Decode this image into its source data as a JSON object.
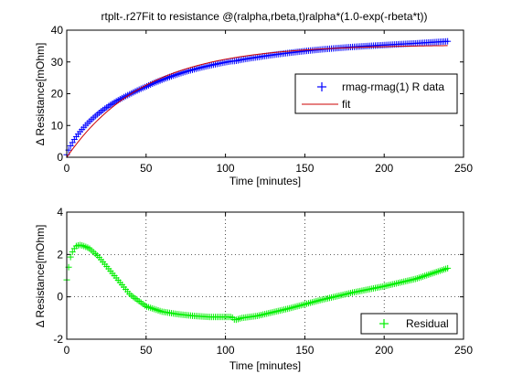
{
  "chart_data": [
    {
      "type": "scatter",
      "title": "rtplt-.r27Fit to resistance @(ralpha,rbeta,t)ralpha*(1.0-exp(-rbeta*t))",
      "xlabel": "Time [minutes]",
      "ylabel": "Δ Resistance[mOhm]",
      "xlim": [
        0,
        250
      ],
      "ylim": [
        0,
        40
      ],
      "xticks": [
        0,
        50,
        100,
        150,
        200,
        250
      ],
      "yticks": [
        0,
        10,
        20,
        30,
        40
      ],
      "grid": false,
      "legend_position": "right",
      "series": [
        {
          "name": "rmag-rmag(1) R data",
          "color": "#0000ff",
          "marker": "plus",
          "model": "fit_plus_residual",
          "x_range": [
            0,
            240
          ]
        },
        {
          "name": "fit",
          "color": "#cc0000",
          "style": "line",
          "model": "ralpha*(1.0-exp(-rbeta*t))",
          "params": {
            "ralpha": 35.4,
            "rbeta": 0.0205
          },
          "x_range": [
            0,
            240
          ]
        }
      ]
    },
    {
      "type": "scatter",
      "title": "",
      "xlabel": "Time [minutes]",
      "ylabel": "Δ Resistance[mOhm]",
      "xlim": [
        0,
        250
      ],
      "ylim": [
        -2,
        4
      ],
      "xticks": [
        0,
        50,
        100,
        150,
        200,
        250
      ],
      "yticks": [
        -2,
        0,
        2,
        4
      ],
      "grid": true,
      "legend_position": "bottom-right",
      "series": [
        {
          "name": "Residual",
          "color": "#00ee00",
          "marker": "plus",
          "knots": {
            "x": [
              0,
              2,
              4,
              6,
              8,
              10,
              14,
              20,
              30,
              40,
              50,
              60,
              70,
              80,
              90,
              100,
              104,
              106,
              110,
              120,
              140,
              160,
              180,
              200,
              220,
              240
            ],
            "y": [
              0.8,
              1.8,
              2.2,
              2.4,
              2.45,
              2.42,
              2.3,
              1.9,
              1.0,
              0.1,
              -0.45,
              -0.7,
              -0.82,
              -0.9,
              -0.95,
              -0.95,
              -0.95,
              -1.1,
              -1.0,
              -0.9,
              -0.55,
              -0.15,
              0.2,
              0.5,
              0.85,
              1.35
            ]
          },
          "x_range": [
            0,
            240
          ]
        }
      ]
    }
  ]
}
